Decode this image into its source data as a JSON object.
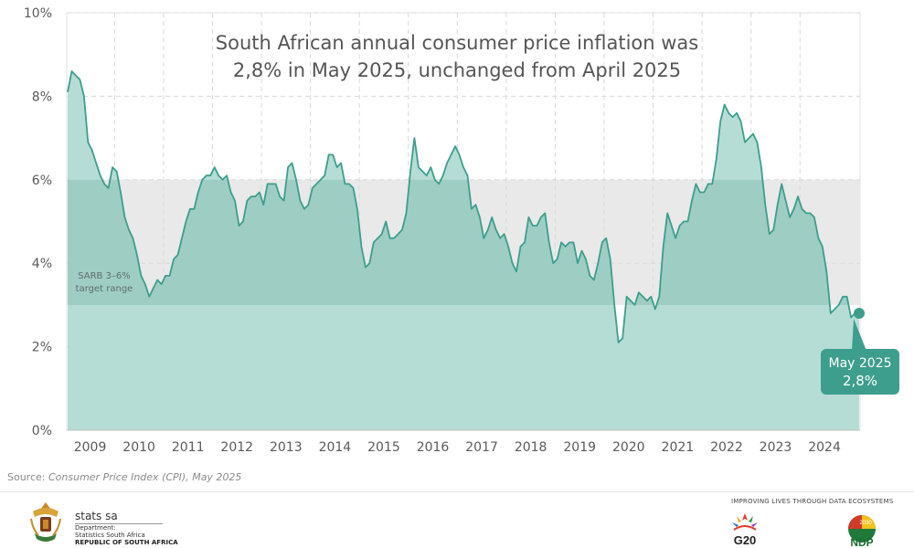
{
  "chart_data": {
    "type": "area",
    "title_lines": [
      "South African annual consumer price inflation was",
      "2,8% in May 2025, unchanged from April 2025"
    ],
    "xlabel": "",
    "ylabel": "",
    "ylim": [
      0,
      10
    ],
    "y_ticks": [
      "0%",
      "2%",
      "4%",
      "6%",
      "8%",
      "10%"
    ],
    "x_ticks": [
      "2009",
      "2010",
      "2011",
      "2012",
      "2013",
      "2014",
      "2015",
      "2016",
      "2017",
      "2018",
      "2019",
      "2020",
      "2021",
      "2022",
      "2023",
      "2024"
    ],
    "grid": true,
    "target_range": {
      "label_lines": [
        "SARB 3–6%",
        "target range"
      ],
      "low": 3,
      "high": 6
    },
    "callout": {
      "label": "May 2025",
      "value": "2,8%"
    },
    "start": "2009-01",
    "frequency": "monthly",
    "series": [
      {
        "values": [
          8.1,
          8.6,
          8.5,
          8.4,
          8.0,
          6.9,
          6.7,
          6.4,
          6.1,
          5.9,
          5.8,
          6.3,
          6.2,
          5.7,
          5.1,
          4.8,
          4.6,
          4.2,
          3.7,
          3.5,
          3.2,
          3.4,
          3.6,
          3.5,
          3.7,
          3.7,
          4.1,
          4.2,
          4.6,
          5.0,
          5.3,
          5.3,
          5.7,
          6.0,
          6.1,
          6.1,
          6.3,
          6.1,
          6.0,
          6.1,
          5.7,
          5.5,
          4.9,
          5.0,
          5.5,
          5.6,
          5.6,
          5.7,
          5.4,
          5.9,
          5.9,
          5.9,
          5.6,
          5.5,
          6.3,
          6.4,
          6.0,
          5.5,
          5.3,
          5.4,
          5.8,
          5.9,
          6.0,
          6.1,
          6.6,
          6.6,
          6.3,
          6.4,
          5.9,
          5.9,
          5.8,
          5.3,
          4.4,
          3.9,
          4.0,
          4.5,
          4.6,
          4.7,
          5.0,
          4.6,
          4.6,
          4.7,
          4.8,
          5.2,
          6.2,
          7.0,
          6.3,
          6.2,
          6.1,
          6.3,
          6.0,
          5.9,
          6.1,
          6.4,
          6.6,
          6.8,
          6.6,
          6.3,
          6.1,
          5.3,
          5.4,
          5.1,
          4.6,
          4.8,
          5.1,
          4.8,
          4.6,
          4.7,
          4.4,
          4.0,
          3.8,
          4.4,
          4.5,
          5.1,
          4.9,
          4.9,
          5.1,
          5.2,
          4.5,
          4.0,
          4.1,
          4.5,
          4.4,
          4.5,
          4.5,
          4.0,
          4.3,
          4.1,
          3.7,
          3.6,
          4.0,
          4.5,
          4.6,
          4.1,
          3.0,
          2.1,
          2.2,
          3.2,
          3.1,
          3.0,
          3.3,
          3.2,
          3.1,
          3.2,
          2.9,
          3.2,
          4.4,
          5.2,
          4.9,
          4.6,
          4.9,
          5.0,
          5.0,
          5.5,
          5.9,
          5.7,
          5.7,
          5.9,
          5.9,
          6.5,
          7.4,
          7.8,
          7.6,
          7.5,
          7.6,
          7.4,
          6.9,
          7.0,
          7.1,
          6.9,
          6.3,
          5.4,
          4.7,
          4.8,
          5.4,
          5.9,
          5.5,
          5.1,
          5.3,
          5.6,
          5.3,
          5.2,
          5.2,
          5.1,
          4.6,
          4.4,
          3.8,
          2.8,
          2.9,
          3.0,
          3.2,
          3.2,
          2.7,
          2.8,
          2.8
        ]
      }
    ],
    "colors": {
      "line": "#3d9e8d",
      "fill": "#b6ddd5",
      "target_band": "#e9e9e9",
      "target_overlap": "#9ecdc3",
      "callout": "#3d9e8d",
      "grid": "#d9d9d9"
    }
  },
  "footer": {
    "source_prefix": "Source: ",
    "source_text": "Consumer Price Index (CPI), May 2025",
    "brand_name": "stats sa",
    "brand_dept": "Department:",
    "brand_agency": "Statistics South Africa",
    "brand_country": "REPUBLIC OF SOUTH AFRICA",
    "tagline": "IMPROVING LIVES THROUGH DATA ECOSYSTEMS",
    "g20_label": "G20",
    "ndp_label": "NDP",
    "ndp_year": "2030"
  }
}
